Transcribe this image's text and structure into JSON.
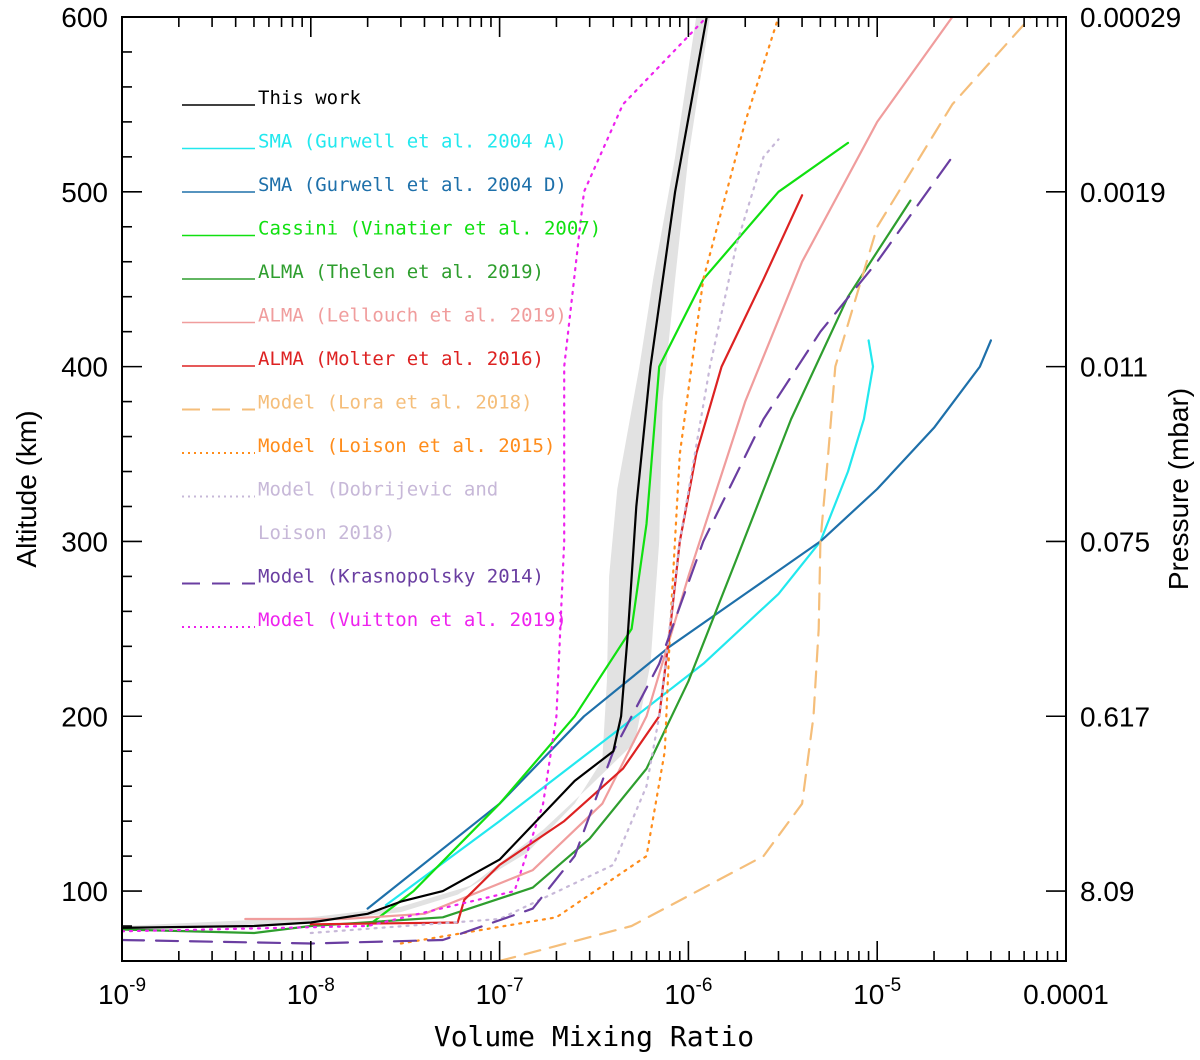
{
  "chart_data": {
    "type": "line",
    "title": "",
    "xlabel": "Volume Mixing Ratio",
    "ylabel": "Altitude (km)",
    "y2label": "Pressure (mbar)",
    "x_scale": "log",
    "xlim": [
      1e-09,
      0.0001
    ],
    "ylim": [
      60,
      600
    ],
    "x_ticks": [
      {
        "value": 1e-09,
        "base": "10",
        "exp": "-9",
        "label": ""
      },
      {
        "value": 1e-08,
        "base": "10",
        "exp": "-8",
        "label": ""
      },
      {
        "value": 1e-07,
        "base": "10",
        "exp": "-7",
        "label": ""
      },
      {
        "value": 1e-06,
        "base": "10",
        "exp": "-6",
        "label": ""
      },
      {
        "value": 1e-05,
        "base": "10",
        "exp": "-5",
        "label": ""
      },
      {
        "value": 0.0001,
        "base": "",
        "exp": "",
        "label": "0.0001"
      }
    ],
    "y_ticks": [
      100,
      200,
      300,
      400,
      500,
      600
    ],
    "y_tick_labels": [
      "100",
      "200",
      "300",
      "400",
      "500",
      "600"
    ],
    "y2_ticks": [
      {
        "altitude": 100,
        "label": "8.09"
      },
      {
        "altitude": 200,
        "label": "0.617"
      },
      {
        "altitude": 300,
        "label": "0.075"
      },
      {
        "altitude": 400,
        "label": "0.011"
      },
      {
        "altitude": 500,
        "label": "0.0019"
      },
      {
        "altitude": 600,
        "label": "0.00029"
      }
    ],
    "grid": false,
    "legend_position": "top-left",
    "uncertainty_band": {
      "name": "This work uncertainty",
      "color": "#e2e2e2",
      "left": [
        [
          1e-09,
          78
        ],
        [
          1e-08,
          82
        ],
        [
          3e-08,
          88
        ],
        [
          6e-08,
          98
        ],
        [
          1.4e-07,
          122
        ],
        [
          2.5e-07,
          150
        ],
        [
          3.5e-07,
          175
        ],
        [
          3.7e-07,
          220
        ],
        [
          3.8e-07,
          280
        ],
        [
          4.2e-07,
          330
        ],
        [
          5.5e-07,
          400
        ],
        [
          6.5e-07,
          450
        ],
        [
          8.5e-07,
          520
        ],
        [
          1.1e-06,
          600
        ]
      ],
      "right": [
        [
          1e-09,
          80
        ],
        [
          1e-08,
          85
        ],
        [
          3e-08,
          91
        ],
        [
          7e-08,
          103
        ],
        [
          1.7e-07,
          135
        ],
        [
          3e-07,
          160
        ],
        [
          5.2e-07,
          185
        ],
        [
          6.3e-07,
          230
        ],
        [
          7e-07,
          300
        ],
        [
          7.3e-07,
          380
        ],
        [
          8.5e-07,
          450
        ],
        [
          1e-06,
          520
        ],
        [
          1.3e-06,
          600
        ]
      ]
    },
    "series": [
      {
        "name": "This work",
        "legend": "This work",
        "color": "#000000",
        "dash": "solid",
        "width": 2.8,
        "points": [
          [
            1e-09,
            79
          ],
          [
            5e-09,
            80
          ],
          [
            1e-08,
            82
          ],
          [
            2e-08,
            87
          ],
          [
            3e-08,
            94
          ],
          [
            5e-08,
            100
          ],
          [
            1e-07,
            118
          ],
          [
            2.5e-07,
            163
          ],
          [
            4e-07,
            180
          ],
          [
            4.4e-07,
            200
          ],
          [
            4.8e-07,
            250
          ],
          [
            5.3e-07,
            320
          ],
          [
            6.3e-07,
            400
          ],
          [
            8.5e-07,
            500
          ],
          [
            1.25e-06,
            600
          ]
        ]
      },
      {
        "name": "SMA A",
        "legend": "SMA (Gurwell et al. 2004 A)",
        "color": "#22e8ee",
        "dash": "solid",
        "width": 2.2,
        "points": [
          [
            2.5e-08,
            92
          ],
          [
            1e-07,
            140
          ],
          [
            4e-07,
            190
          ],
          [
            1.2e-06,
            230
          ],
          [
            3e-06,
            270
          ],
          [
            5e-06,
            300
          ],
          [
            7e-06,
            340
          ],
          [
            8.5e-06,
            370
          ],
          [
            9.5e-06,
            400
          ],
          [
            9e-06,
            415
          ]
        ]
      },
      {
        "name": "SMA D",
        "legend": "SMA (Gurwell et al. 2004 D)",
        "color": "#1e70aa",
        "dash": "solid",
        "width": 2.2,
        "points": [
          [
            2e-08,
            90
          ],
          [
            1e-07,
            150
          ],
          [
            2.8e-07,
            200
          ],
          [
            8e-07,
            240
          ],
          [
            2e-06,
            270
          ],
          [
            5e-06,
            300
          ],
          [
            1e-05,
            330
          ],
          [
            2e-05,
            365
          ],
          [
            3.5e-05,
            400
          ],
          [
            4e-05,
            415
          ]
        ]
      },
      {
        "name": "Cassini",
        "legend": "Cassini (Vinatier et al. 2007)",
        "color": "#10e010",
        "dash": "solid",
        "width": 2.2,
        "points": [
          [
            2e-08,
            80
          ],
          [
            3.5e-08,
            100
          ],
          [
            1e-07,
            150
          ],
          [
            2.5e-07,
            200
          ],
          [
            5e-07,
            250
          ],
          [
            6e-07,
            310
          ],
          [
            7e-07,
            400
          ],
          [
            1.2e-06,
            450
          ],
          [
            3e-06,
            500
          ],
          [
            7e-06,
            528
          ]
        ]
      },
      {
        "name": "ALMA Thelen",
        "legend": "ALMA (Thelen et al. 2019)",
        "color": "#2e9e2e",
        "dash": "solid",
        "width": 2.2,
        "points": [
          [
            1e-09,
            78
          ],
          [
            5e-09,
            76
          ],
          [
            1e-08,
            80
          ],
          [
            5e-08,
            85
          ],
          [
            1.5e-07,
            102
          ],
          [
            3e-07,
            130
          ],
          [
            6e-07,
            170
          ],
          [
            1e-06,
            220
          ],
          [
            1.8e-06,
            290
          ],
          [
            3.5e-06,
            370
          ],
          [
            7e-06,
            440
          ],
          [
            1.5e-05,
            495
          ]
        ]
      },
      {
        "name": "ALMA Lellouch",
        "legend": "ALMA (Lellouch et al. 2019)",
        "color": "#f09d9d",
        "dash": "solid",
        "width": 2.2,
        "points": [
          [
            4.5e-09,
            84
          ],
          [
            1.5e-08,
            84
          ],
          [
            4e-08,
            87
          ],
          [
            1.5e-07,
            112
          ],
          [
            3.5e-07,
            150
          ],
          [
            6e-07,
            200
          ],
          [
            1e-06,
            280
          ],
          [
            2e-06,
            380
          ],
          [
            4e-06,
            460
          ],
          [
            1e-05,
            540
          ],
          [
            2.5e-05,
            600
          ]
        ]
      },
      {
        "name": "ALMA Molter",
        "legend": "ALMA (Molter et al. 2016)",
        "color": "#dd2222",
        "dash": "solid",
        "width": 2.2,
        "points": [
          [
            1e-08,
            81
          ],
          [
            6e-08,
            82
          ],
          [
            6.5e-08,
            95
          ],
          [
            1e-07,
            115
          ],
          [
            2.2e-07,
            140
          ],
          [
            4.5e-07,
            170
          ],
          [
            7e-07,
            200
          ],
          [
            8e-07,
            250
          ],
          [
            9e-07,
            300
          ],
          [
            1.1e-06,
            350
          ],
          [
            1.5e-06,
            400
          ],
          [
            2.5e-06,
            450
          ],
          [
            4e-06,
            498
          ]
        ]
      },
      {
        "name": "Model Lora",
        "legend": "Model (Lora et al. 2018)",
        "color": "#f5be7a",
        "dash": "dashed",
        "width": 2.2,
        "points": [
          [
            1e-07,
            60
          ],
          [
            5e-07,
            80
          ],
          [
            2.5e-06,
            120
          ],
          [
            4e-06,
            150
          ],
          [
            4.6e-06,
            200
          ],
          [
            4.9e-06,
            250
          ],
          [
            5e-06,
            300
          ],
          [
            5.5e-06,
            350
          ],
          [
            6e-06,
            400
          ],
          [
            1e-05,
            480
          ],
          [
            2.5e-05,
            550
          ],
          [
            6.5e-05,
            600
          ]
        ]
      },
      {
        "name": "Model Loison",
        "legend": "Model (Loison et al. 2015)",
        "color": "#ff8c1a",
        "dash": "dotted",
        "width": 2.4,
        "points": [
          [
            3e-08,
            70
          ],
          [
            2e-07,
            85
          ],
          [
            6e-07,
            120
          ],
          [
            7.5e-07,
            180
          ],
          [
            8e-07,
            250
          ],
          [
            9e-07,
            350
          ],
          [
            1.2e-06,
            450
          ],
          [
            2e-06,
            540
          ],
          [
            3e-06,
            600
          ]
        ]
      },
      {
        "name": "Model Dobrijevic",
        "legend": "Model (Dobrijevic and",
        "legend2": "Loison 2018)",
        "color": "#c7b8d8",
        "dash": "dotted",
        "width": 2.4,
        "points": [
          [
            1e-08,
            76
          ],
          [
            1e-07,
            84
          ],
          [
            4e-07,
            115
          ],
          [
            6e-07,
            160
          ],
          [
            7e-07,
            200
          ],
          [
            9e-07,
            300
          ],
          [
            1.3e-06,
            400
          ],
          [
            1.8e-06,
            470
          ],
          [
            2.5e-06,
            520
          ],
          [
            3e-06,
            530
          ]
        ]
      },
      {
        "name": "Model Krasnopolsky",
        "legend": "Model (Krasnopolsky 2014)",
        "color": "#6a3ea1",
        "dash": "longdash",
        "width": 2.4,
        "points": [
          [
            1e-09,
            72
          ],
          [
            1e-08,
            70
          ],
          [
            5e-08,
            72
          ],
          [
            1.5e-07,
            90
          ],
          [
            2.5e-07,
            120
          ],
          [
            4e-07,
            180
          ],
          [
            7e-07,
            230
          ],
          [
            1.2e-06,
            300
          ],
          [
            2.5e-06,
            370
          ],
          [
            5e-06,
            420
          ],
          [
            1e-05,
            460
          ],
          [
            2.5e-05,
            520
          ]
        ]
      },
      {
        "name": "Model Vuitton",
        "legend": "Model (Vuitton et al. 2019)",
        "color": "#ee22ee",
        "dash": "dotted",
        "width": 2.4,
        "points": [
          [
            1e-09,
            77
          ],
          [
            2e-08,
            80
          ],
          [
            1.2e-07,
            100
          ],
          [
            1.7e-07,
            150
          ],
          [
            2e-07,
            200
          ],
          [
            2.2e-07,
            300
          ],
          [
            2.2e-07,
            400
          ],
          [
            2.8e-07,
            500
          ],
          [
            4.5e-07,
            550
          ],
          [
            1.25e-06,
            600
          ]
        ]
      }
    ]
  }
}
